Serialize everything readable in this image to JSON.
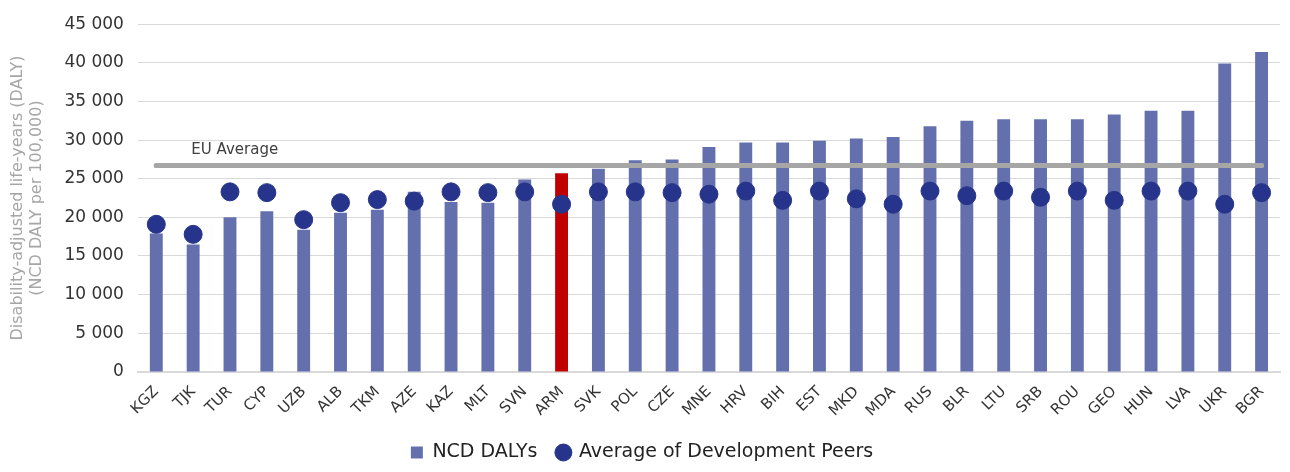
{
  "chart_data": {
    "type": "bar",
    "ylabel": "Disability-adjusted life-years (DALY)\n(NCD DALY per 100,000)",
    "categories": [
      "KGZ",
      "TJK",
      "TUR",
      "CYP",
      "UZB",
      "ALB",
      "TKM",
      "AZE",
      "KAZ",
      "MLT",
      "SVN",
      "ARM",
      "SVK",
      "POL",
      "CZE",
      "MNE",
      "HRV",
      "BIH",
      "EST",
      "MKD",
      "MDA",
      "RUS",
      "BLR",
      "LTU",
      "SRB",
      "ROU",
      "GEO",
      "HUN",
      "LVA",
      "UKR",
      "BGR"
    ],
    "series": [
      {
        "name": "NCD DALYs",
        "color": "#6470ae",
        "colors": [
          "#6470ae",
          "#6470ae",
          "#6470ae",
          "#6470ae",
          "#6470ae",
          "#6470ae",
          "#6470ae",
          "#6470ae",
          "#6470ae",
          "#6470ae",
          "#6470ae",
          "#c00000",
          "#6470ae",
          "#6470ae",
          "#6470ae",
          "#6470ae",
          "#6470ae",
          "#6470ae",
          "#6470ae",
          "#6470ae",
          "#6470ae",
          "#6470ae",
          "#6470ae",
          "#6470ae",
          "#6470ae",
          "#6470ae",
          "#6470ae",
          "#6470ae",
          "#6470ae",
          "#6470ae",
          "#6470ae"
        ],
        "values": [
          17900,
          16500,
          20000,
          20800,
          18400,
          20600,
          21000,
          23300,
          22000,
          21900,
          24900,
          25700,
          26300,
          27400,
          27500,
          29100,
          29700,
          29700,
          29900,
          30200,
          30400,
          31800,
          32500,
          32700,
          32700,
          32700,
          33300,
          33800,
          33800,
          39900,
          41400
        ]
      },
      {
        "name": "Average of Development Peers",
        "type": "scatter",
        "marker": "circle",
        "color": "#27348b",
        "values": [
          19100,
          17800,
          23300,
          23200,
          19700,
          21900,
          22300,
          22100,
          23300,
          23200,
          23300,
          21700,
          23300,
          23300,
          23200,
          23000,
          23400,
          22200,
          23400,
          22400,
          21700,
          23400,
          22800,
          23400,
          22600,
          23400,
          22200,
          23400,
          23400,
          21700,
          23200
        ]
      }
    ],
    "ylim": [
      0,
      45000
    ],
    "yticks": [
      {
        "value": 0,
        "label": "0"
      },
      {
        "value": 5000,
        "label": "5 000"
      },
      {
        "value": 10000,
        "label": "10 000"
      },
      {
        "value": 15000,
        "label": "15 000"
      },
      {
        "value": 20000,
        "label": "20 000"
      },
      {
        "value": 25000,
        "label": "25 000"
      },
      {
        "value": 30000,
        "label": "30 000"
      },
      {
        "value": 35000,
        "label": "35 000"
      },
      {
        "value": 40000,
        "label": "40 000"
      },
      {
        "value": 45000,
        "label": "45 000"
      }
    ],
    "ref_lines": [
      {
        "axis": "y",
        "value": 26700,
        "label": "EU Average",
        "color": "#a6a6a6"
      }
    ],
    "grid": "y",
    "legend": "bottom"
  }
}
